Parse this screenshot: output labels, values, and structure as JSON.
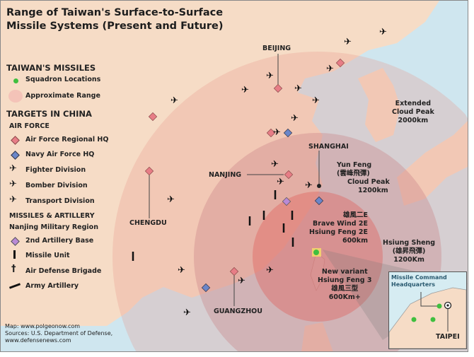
{
  "title": [
    "Range of Taiwan's Surface-to-Surface",
    "Missile Systems (Present and Future)"
  ],
  "legend": {
    "taiwan_heading": "TAIWAN'S MISSILES",
    "squadron": "Squadron Locations",
    "range": "Approximate Range",
    "targets_heading": "TARGETS IN CHINA",
    "air_force_heading": "AIR FORCE",
    "af_regional_hq": "Air Force Regional HQ",
    "navy_af_hq": "Navy Air Force HQ",
    "fighter": "Fighter Division",
    "bomber": "Bomber Division",
    "transport": "Transport Division",
    "missiles_heading": "MISSILES & ARTILLERY",
    "nanjing_region": "Nanjing Military Region",
    "artillery_base": "2nd Artillery Base",
    "missile_unit": "Missile Unit",
    "air_defense": "Air Defense Brigade",
    "army_artillery": "Army Artillery"
  },
  "cities": {
    "beijing": "BEIJING",
    "shanghai": "SHANGHAI",
    "nanjing": "NANJING",
    "chengdu": "CHENGDU",
    "guangzhou": "GUANGZHOU",
    "taipei": "TAIPEI"
  },
  "ranges": {
    "extended_cloud_peak": [
      "Extended",
      "Cloud Peak",
      "2000km"
    ],
    "yun_feng": [
      "Yun Feng",
      "(雲峰飛彈)",
      "Cloud Peak",
      "1200km"
    ],
    "brave_wind": [
      "雄風二E",
      "Brave Wind 2E",
      "Hsiung Feng 2E",
      "600km"
    ],
    "hsiung_sheng": [
      "Hsiung Sheng",
      "(雄昇飛彈)",
      "1200Km"
    ],
    "hsiung_feng_3": [
      "New variant",
      "Hsiung Feng 3",
      "雄風三型",
      "600Km+"
    ]
  },
  "inset": {
    "label": [
      "Missile Command",
      "Headquarters"
    ]
  },
  "sources": [
    "Map: www.polgeonow.com",
    "Sources: U.S. Department of Defense,",
    "www.defensenews.com"
  ],
  "colors": {
    "sea": "#cfe6ef",
    "land": "#f6dcc6",
    "range_fill": "#e79a8f",
    "squadron": "#3fbf3f",
    "af_hq": "#e77d86",
    "navy_hq": "#6b86c9",
    "artillery_base": "#b98ad6"
  }
}
